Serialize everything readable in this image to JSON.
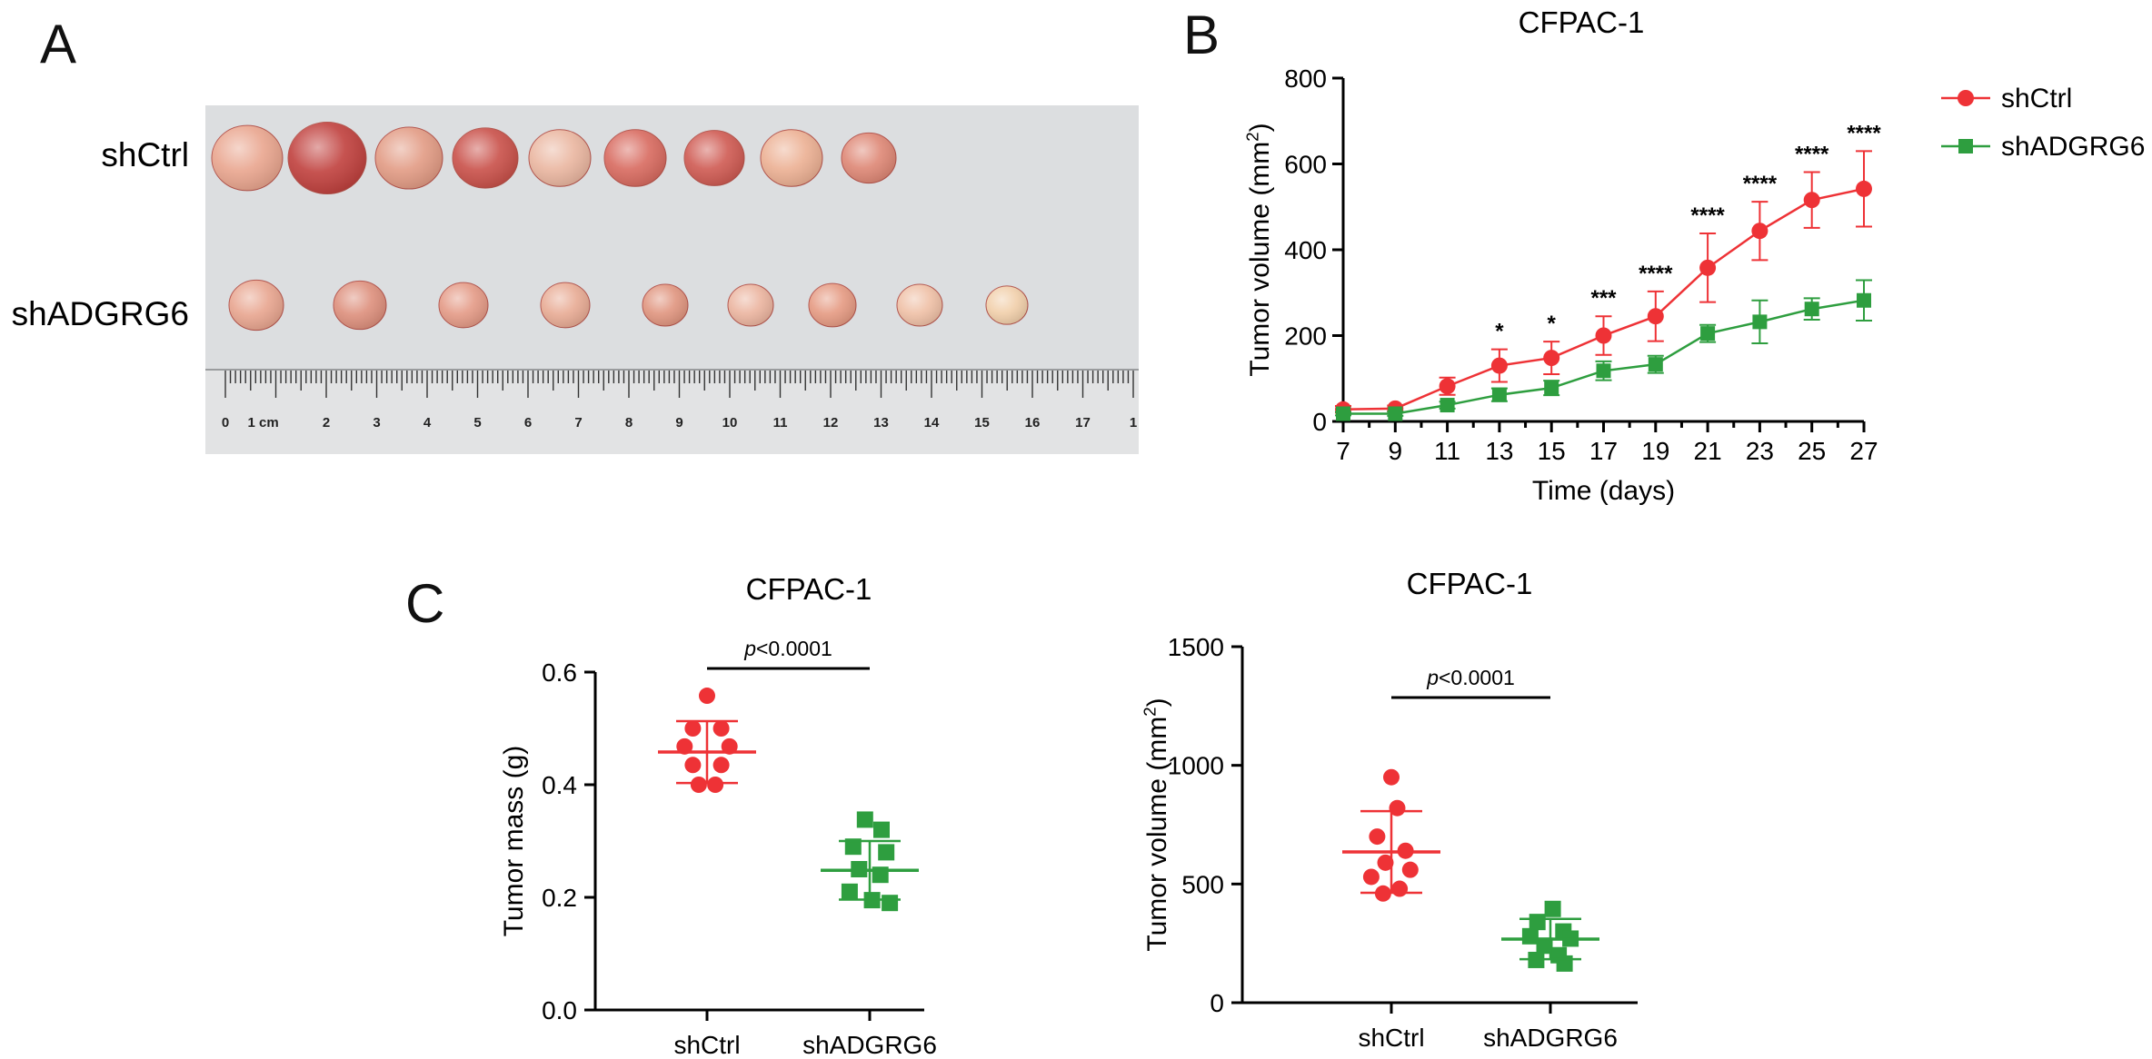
{
  "panels": {
    "a": "A",
    "b": "B",
    "c": "C"
  },
  "photo": {
    "row_labels": [
      "shCtrl",
      "shADGRG6"
    ],
    "ruler_labels": [
      "0",
      "1 cm",
      "2",
      "3",
      "4",
      "5",
      "6",
      "7",
      "8",
      "9",
      "10",
      "11",
      "12",
      "13",
      "14",
      "15",
      "16",
      "17",
      "1"
    ],
    "tumors": {
      "shCtrl": [
        {
          "diam": 78,
          "shade": "#e9a58e"
        },
        {
          "diam": 86,
          "shade": "#c0403d"
        },
        {
          "diam": 74,
          "shade": "#e29b84"
        },
        {
          "diam": 72,
          "shade": "#c95049"
        },
        {
          "diam": 68,
          "shade": "#eab6a0"
        },
        {
          "diam": 68,
          "shade": "#d86a5f"
        },
        {
          "diam": 66,
          "shade": "#cf5a52"
        },
        {
          "diam": 68,
          "shade": "#ecb093"
        },
        {
          "diam": 60,
          "shade": "#de8775"
        }
      ],
      "shADGRG6": [
        {
          "diam": 60,
          "shade": "#e8a58f"
        },
        {
          "diam": 58,
          "shade": "#dd8f7c"
        },
        {
          "diam": 54,
          "shade": "#e49a86"
        },
        {
          "diam": 54,
          "shade": "#e8ab94"
        },
        {
          "diam": 50,
          "shade": "#e0957f"
        },
        {
          "diam": 50,
          "shade": "#ebb49f"
        },
        {
          "diam": 52,
          "shade": "#e59a82"
        },
        {
          "diam": 50,
          "shade": "#efc0a6"
        },
        {
          "diam": 46,
          "shade": "#f1cfaa"
        }
      ]
    }
  },
  "colors": {
    "ctrl": "#ee3236",
    "kd": "#2e9e3f"
  },
  "chart_data": [
    {
      "type": "line",
      "title": "CFPAC-1",
      "xlabel": "Time (days)",
      "ylabel": "Tumor volume  (mm",
      "ylabel_sup": "2",
      "ylabel_tail": ")",
      "xlim": [
        7,
        27
      ],
      "ylim": [
        0,
        800
      ],
      "x_ticks": [
        7,
        9,
        11,
        13,
        15,
        17,
        19,
        21,
        23,
        25,
        27
      ],
      "y_ticks": [
        0,
        200,
        400,
        600,
        800
      ],
      "x": [
        7,
        9,
        11,
        13,
        15,
        17,
        19,
        21,
        23,
        25,
        27
      ],
      "series": [
        {
          "name": "shCtrl",
          "marker": "circle",
          "values": [
            28,
            30,
            82,
            130,
            148,
            200,
            245,
            358,
            444,
            516,
            542
          ],
          "errors": [
            8,
            7,
            20,
            38,
            38,
            45,
            58,
            80,
            68,
            65,
            88
          ]
        },
        {
          "name": "shADGRG6",
          "marker": "square",
          "values": [
            18,
            18,
            38,
            62,
            78,
            118,
            133,
            205,
            232,
            262,
            282
          ],
          "errors": [
            4,
            5,
            8,
            15,
            17,
            22,
            20,
            20,
            50,
            25,
            47
          ]
        }
      ],
      "annotations": [
        {
          "x": 13,
          "text": "*"
        },
        {
          "x": 15,
          "text": "*"
        },
        {
          "x": 17,
          "text": "***"
        },
        {
          "x": 19,
          "text": "****"
        },
        {
          "x": 21,
          "text": "****"
        },
        {
          "x": 23,
          "text": "****"
        },
        {
          "x": 25,
          "text": "****"
        },
        {
          "x": 27,
          "text": "****"
        }
      ]
    },
    {
      "type": "scatter",
      "title": "CFPAC-1",
      "ylabel": "Tumor mass (g)",
      "categories": [
        "shCtrl",
        "shADGRG6"
      ],
      "ylim": [
        0,
        0.6
      ],
      "y_ticks": [
        "0.0",
        "0.2",
        "0.4",
        "0.6"
      ],
      "y_tick_values": [
        0,
        0.2,
        0.4,
        0.6
      ],
      "groups": [
        {
          "name": "shCtrl",
          "marker": "circle",
          "mean": 0.458,
          "sd": 0.055,
          "points": [
            0.558,
            0.5,
            0.5,
            0.468,
            0.468,
            0.435,
            0.435,
            0.4,
            0.4
          ],
          "offsets": [
            0,
            -0.6,
            0.6,
            -0.95,
            0.95,
            -0.6,
            0.6,
            -0.35,
            0.35
          ]
        },
        {
          "name": "shADGRG6",
          "marker": "square",
          "mean": 0.248,
          "sd": 0.052,
          "points": [
            0.338,
            0.32,
            0.29,
            0.28,
            0.25,
            0.24,
            0.21,
            0.195,
            0.19
          ],
          "offsets": [
            -0.2,
            0.5,
            -0.7,
            0.7,
            -0.45,
            0.45,
            -0.85,
            0.1,
            0.85
          ]
        }
      ],
      "significance": {
        "label": "p<0.0001"
      }
    },
    {
      "type": "scatter",
      "title": "CFPAC-1",
      "ylabel": "Tumor volume  (mm",
      "ylabel_sup": "2",
      "ylabel_tail": ")",
      "categories": [
        "shCtrl",
        "shADGRG6"
      ],
      "ylim": [
        0,
        1500
      ],
      "y_ticks": [
        "0",
        "500",
        "1000",
        "1500"
      ],
      "y_tick_values": [
        0,
        500,
        1000,
        1500
      ],
      "groups": [
        {
          "name": "shCtrl",
          "marker": "circle",
          "mean": 635,
          "sd": 172,
          "points": [
            950,
            820,
            700,
            640,
            590,
            560,
            530,
            480,
            460
          ],
          "offsets": [
            0,
            0.25,
            -0.6,
            0.6,
            -0.25,
            0.8,
            -0.85,
            0.35,
            -0.35
          ]
        },
        {
          "name": "shADGRG6",
          "marker": "square",
          "mean": 268,
          "sd": 85,
          "points": [
            395,
            340,
            300,
            280,
            270,
            240,
            200,
            180,
            165
          ],
          "offsets": [
            0.1,
            -0.55,
            0.55,
            -0.85,
            0.85,
            -0.25,
            0.35,
            -0.6,
            0.6
          ]
        }
      ],
      "significance": {
        "label": "p<0.0001"
      }
    }
  ]
}
